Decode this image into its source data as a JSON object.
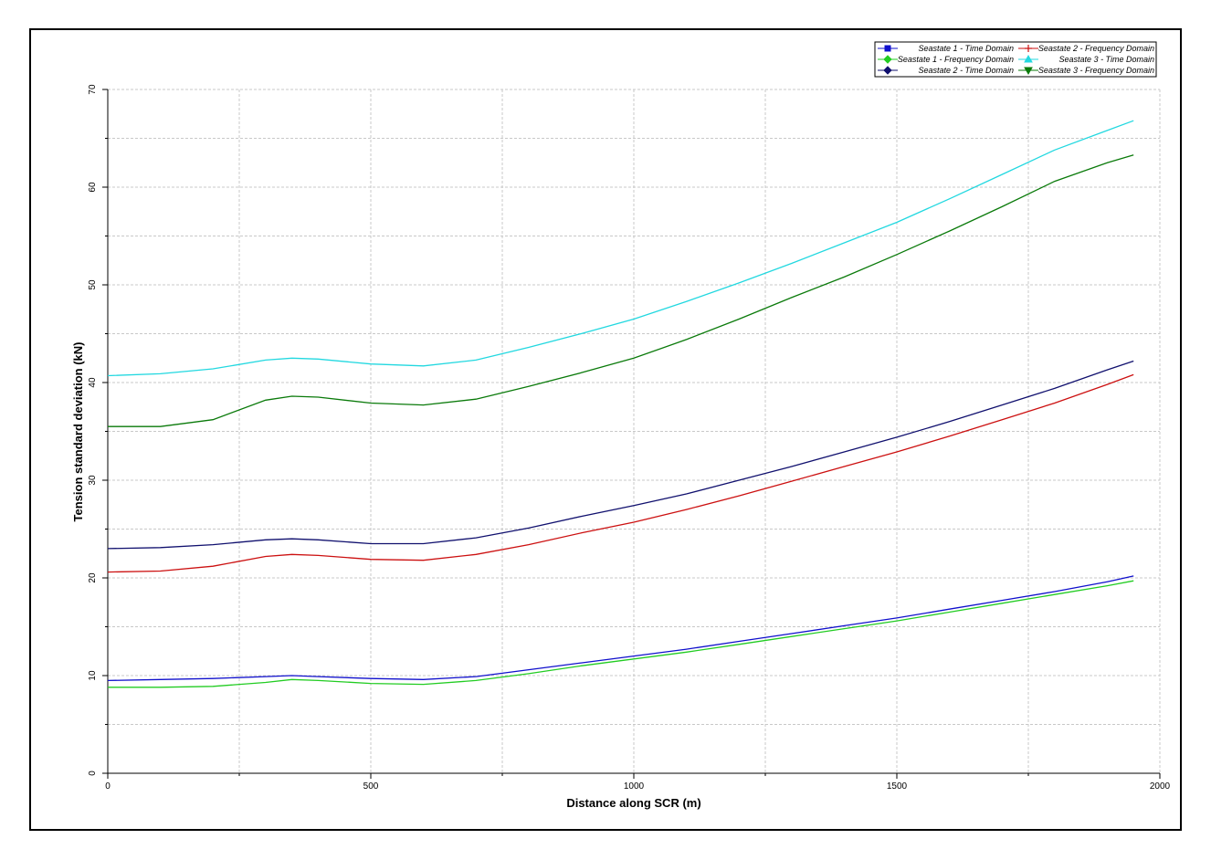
{
  "chart_data": {
    "type": "line",
    "title": "",
    "xlabel": "Distance along SCR (m)",
    "ylabel": "Tension standard deviation (kN)",
    "xlim": [
      0,
      2000
    ],
    "ylim": [
      0,
      70
    ],
    "x_ticks": [
      0,
      500,
      1000,
      1500,
      2000
    ],
    "y_ticks": [
      0,
      10,
      20,
      30,
      40,
      50,
      60,
      70
    ],
    "grid": true,
    "legend_position": "top-right",
    "series": [
      {
        "name": "Seastate 1 - Time Domain",
        "color": "#1010cc",
        "marker": "square",
        "x": [
          0,
          100,
          200,
          300,
          350,
          400,
          500,
          600,
          700,
          800,
          900,
          1000,
          1100,
          1200,
          1300,
          1400,
          1500,
          1600,
          1700,
          1800,
          1900,
          1950
        ],
        "y": [
          9.5,
          9.6,
          9.7,
          9.9,
          10.0,
          9.9,
          9.7,
          9.6,
          9.9,
          10.6,
          11.3,
          12.0,
          12.7,
          13.5,
          14.3,
          15.1,
          15.9,
          16.8,
          17.7,
          18.6,
          19.6,
          20.2
        ]
      },
      {
        "name": "Seastate 1 - Frequency Domain",
        "color": "#22cc22",
        "marker": "diamond",
        "x": [
          0,
          100,
          200,
          300,
          350,
          400,
          500,
          600,
          700,
          800,
          900,
          1000,
          1100,
          1200,
          1300,
          1400,
          1500,
          1600,
          1700,
          1800,
          1900,
          1950
        ],
        "y": [
          8.8,
          8.8,
          8.9,
          9.3,
          9.6,
          9.5,
          9.2,
          9.1,
          9.5,
          10.2,
          11.0,
          11.7,
          12.4,
          13.2,
          14.0,
          14.8,
          15.6,
          16.5,
          17.4,
          18.3,
          19.2,
          19.7
        ]
      },
      {
        "name": "Seastate 2 - Time Domain",
        "color": "#10106e",
        "marker": "diamond",
        "x": [
          0,
          100,
          200,
          300,
          350,
          400,
          500,
          600,
          700,
          800,
          900,
          1000,
          1100,
          1200,
          1300,
          1400,
          1500,
          1600,
          1700,
          1800,
          1900,
          1950
        ],
        "y": [
          23.0,
          23.1,
          23.4,
          23.9,
          24.0,
          23.9,
          23.5,
          23.5,
          24.1,
          25.1,
          26.3,
          27.4,
          28.6,
          30.0,
          31.4,
          32.9,
          34.4,
          36.0,
          37.7,
          39.4,
          41.3,
          42.2
        ]
      },
      {
        "name": "Seastate 2 - Frequency Domain",
        "color": "#cc1010",
        "marker": "plus",
        "x": [
          0,
          100,
          200,
          300,
          350,
          400,
          500,
          600,
          700,
          800,
          900,
          1000,
          1100,
          1200,
          1300,
          1400,
          1500,
          1600,
          1700,
          1800,
          1900,
          1950
        ],
        "y": [
          20.6,
          20.7,
          21.2,
          22.2,
          22.4,
          22.3,
          21.9,
          21.8,
          22.4,
          23.4,
          24.6,
          25.7,
          27.0,
          28.4,
          29.9,
          31.4,
          32.9,
          34.5,
          36.2,
          37.9,
          39.8,
          40.8
        ]
      },
      {
        "name": "Seastate 3 - Time Domain",
        "color": "#22d8e0",
        "marker": "triangle-up",
        "x": [
          0,
          100,
          200,
          300,
          350,
          400,
          500,
          600,
          700,
          800,
          900,
          1000,
          1100,
          1200,
          1300,
          1400,
          1500,
          1600,
          1700,
          1800,
          1900,
          1950
        ],
        "y": [
          40.7,
          40.9,
          41.4,
          42.3,
          42.5,
          42.4,
          41.9,
          41.7,
          42.3,
          43.6,
          45.0,
          46.5,
          48.3,
          50.2,
          52.2,
          54.3,
          56.4,
          58.8,
          61.3,
          63.8,
          65.8,
          66.8
        ]
      },
      {
        "name": "Seastate 3 - Frequency Domain",
        "color": "#0a7a0a",
        "marker": "triangle-down",
        "x": [
          0,
          100,
          200,
          300,
          350,
          400,
          500,
          600,
          700,
          800,
          900,
          1000,
          1100,
          1200,
          1300,
          1400,
          1500,
          1600,
          1700,
          1800,
          1900,
          1950
        ],
        "y": [
          35.5,
          35.5,
          36.2,
          38.2,
          38.6,
          38.5,
          37.9,
          37.7,
          38.3,
          39.6,
          41.0,
          42.5,
          44.4,
          46.5,
          48.7,
          50.8,
          53.1,
          55.5,
          58.0,
          60.6,
          62.5,
          63.3
        ]
      }
    ],
    "legend_order": [
      0,
      3,
      1,
      4,
      2,
      5
    ]
  }
}
